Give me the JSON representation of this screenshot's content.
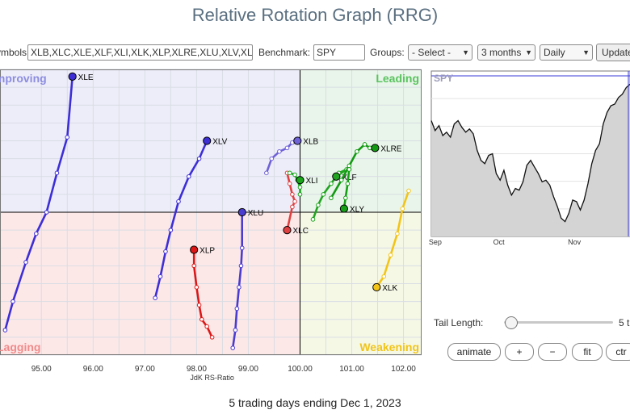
{
  "title": "Relative Rotation Graph (RRG)",
  "controls": {
    "symbols_label": "Symbols:",
    "symbols_value": "XLB,XLC,XLE,XLF,XLI,XLK,XLP,XLRE,XLU,XLV,XLY",
    "benchmark_label": "Benchmark:",
    "benchmark_value": "SPY",
    "groups_label": "Groups:",
    "groups_value": "- Select -",
    "period_value": "3 months",
    "frequency_value": "Daily",
    "update_label": "Update"
  },
  "chart_data": [
    {
      "type": "scatter",
      "xlabel": "JdK RS-Ratio",
      "ylabel": "",
      "xlim": [
        94.2,
        102.35
      ],
      "ylim": [
        96.0,
        104.0
      ],
      "center": [
        100,
        100
      ],
      "x_ticks": [
        "95.00",
        "96.00",
        "97.00",
        "98.00",
        "99.00",
        "100.00",
        "101.00",
        "102.00"
      ],
      "quadrants": {
        "improving": {
          "label": "Improving",
          "color": "#ededf9",
          "label_color": "#8c8ce0"
        },
        "leading": {
          "label": "Leading",
          "color": "#e9f5ea",
          "label_color": "#59c35e"
        },
        "lagging": {
          "label": "Lagging",
          "color": "#fde8e8",
          "label_color": "#f08a8a"
        },
        "weakening": {
          "label": "Weakening",
          "color": "#f6f8e6",
          "label_color": "#f0c419"
        }
      },
      "series": [
        {
          "name": "XLE",
          "color": "#3d2ed6",
          "points": [
            [
              94.3,
              96.7
            ],
            [
              94.45,
              97.5
            ],
            [
              94.7,
              98.6
            ],
            [
              94.9,
              99.4
            ],
            [
              95.1,
              100.0
            ],
            [
              95.3,
              101.1
            ],
            [
              95.5,
              102.1
            ],
            [
              95.6,
              103.8
            ]
          ]
        },
        {
          "name": "XLV",
          "color": "#3d2ed6",
          "points": [
            [
              97.2,
              97.6
            ],
            [
              97.3,
              98.2
            ],
            [
              97.4,
              98.9
            ],
            [
              97.5,
              99.5
            ],
            [
              97.65,
              100.3
            ],
            [
              97.85,
              101.0
            ],
            [
              98.05,
              101.5
            ],
            [
              98.2,
              102.0
            ]
          ]
        },
        {
          "name": "XLB",
          "color": "#6f62d8",
          "points": [
            [
              99.35,
              101.1
            ],
            [
              99.45,
              101.5
            ],
            [
              99.6,
              101.7
            ],
            [
              99.75,
              101.8
            ],
            [
              99.85,
              101.95
            ],
            [
              99.95,
              102.0
            ]
          ]
        },
        {
          "name": "XLU",
          "color": "#4a3cd0",
          "points": [
            [
              98.7,
              96.2
            ],
            [
              98.75,
              96.7
            ],
            [
              98.78,
              97.3
            ],
            [
              98.82,
              97.9
            ],
            [
              98.86,
              98.5
            ],
            [
              98.88,
              99.0
            ],
            [
              98.88,
              100.0
            ]
          ]
        },
        {
          "name": "XLP",
          "color": "#dd1717",
          "points": [
            [
              98.3,
              96.5
            ],
            [
              98.2,
              96.8
            ],
            [
              98.1,
              97.0
            ],
            [
              98.05,
              97.4
            ],
            [
              98.0,
              97.9
            ],
            [
              97.95,
              98.5
            ],
            [
              97.95,
              98.95
            ]
          ]
        },
        {
          "name": "XLC",
          "color": "#e04040",
          "points": [
            [
              99.75,
              101.1
            ],
            [
              99.8,
              100.8
            ],
            [
              99.85,
              100.5
            ],
            [
              99.9,
              100.3
            ],
            [
              99.85,
              100.15
            ],
            [
              99.75,
              99.5
            ]
          ]
        },
        {
          "name": "XLI",
          "color": "#1aa51a",
          "points": [
            [
              99.8,
              101.1
            ],
            [
              99.9,
              101.05
            ],
            [
              99.95,
              100.9
            ],
            [
              100.0,
              100.7
            ],
            [
              100.0,
              100.5
            ],
            [
              100.0,
              100.9
            ]
          ]
        },
        {
          "name": "XLF",
          "color": "#21a521",
          "points": [
            [
              100.25,
              99.8
            ],
            [
              100.35,
              100.2
            ],
            [
              100.45,
              100.5
            ],
            [
              100.6,
              100.8
            ],
            [
              100.75,
              101.1
            ],
            [
              100.9,
              101.2
            ],
            [
              100.7,
              101.0
            ]
          ]
        },
        {
          "name": "XLRE",
          "color": "#139a13",
          "points": [
            [
              100.6,
              100.4
            ],
            [
              100.8,
              100.9
            ],
            [
              100.95,
              101.3
            ],
            [
              101.1,
              101.7
            ],
            [
              101.25,
              101.9
            ],
            [
              101.35,
              101.8
            ],
            [
              101.45,
              101.8
            ]
          ]
        },
        {
          "name": "XLY",
          "color": "#16a016",
          "points": [
            [
              100.95,
              101.2
            ],
            [
              100.92,
              100.8
            ],
            [
              100.88,
              100.4
            ],
            [
              100.85,
              100.1
            ]
          ]
        },
        {
          "name": "XLK",
          "color": "#f2c418",
          "points": [
            [
              102.1,
              100.6
            ],
            [
              101.98,
              100.1
            ],
            [
              101.88,
              99.4
            ],
            [
              101.75,
              98.8
            ],
            [
              101.62,
              98.2
            ],
            [
              101.48,
              97.9
            ]
          ]
        }
      ]
    },
    {
      "type": "line",
      "title": "SPY",
      "x_ticks": [
        "Sep",
        "Oct",
        "Nov"
      ],
      "ylim": [
        0,
        100
      ],
      "grid": true,
      "series": [
        {
          "name": "SPY",
          "values": [
            70,
            64,
            67,
            61,
            63,
            60,
            68,
            70,
            66,
            63,
            65,
            62,
            52,
            46,
            44,
            49,
            50,
            38,
            34,
            40,
            31,
            25,
            29,
            28,
            33,
            43,
            46,
            42,
            38,
            33,
            34,
            31,
            24,
            18,
            11,
            9,
            14,
            22,
            21,
            16,
            22,
            32,
            44,
            52,
            56,
            68,
            75,
            79,
            80,
            84,
            86,
            90,
            92
          ]
        }
      ]
    }
  ],
  "tail": {
    "label": "Tail Length:",
    "value": "5 t"
  },
  "buttons": {
    "animate": "animate",
    "plus": "+",
    "minus": "−",
    "fit": "fit",
    "ctr": "ctr"
  },
  "footer": "5 trading days ending Dec 1, 2023"
}
